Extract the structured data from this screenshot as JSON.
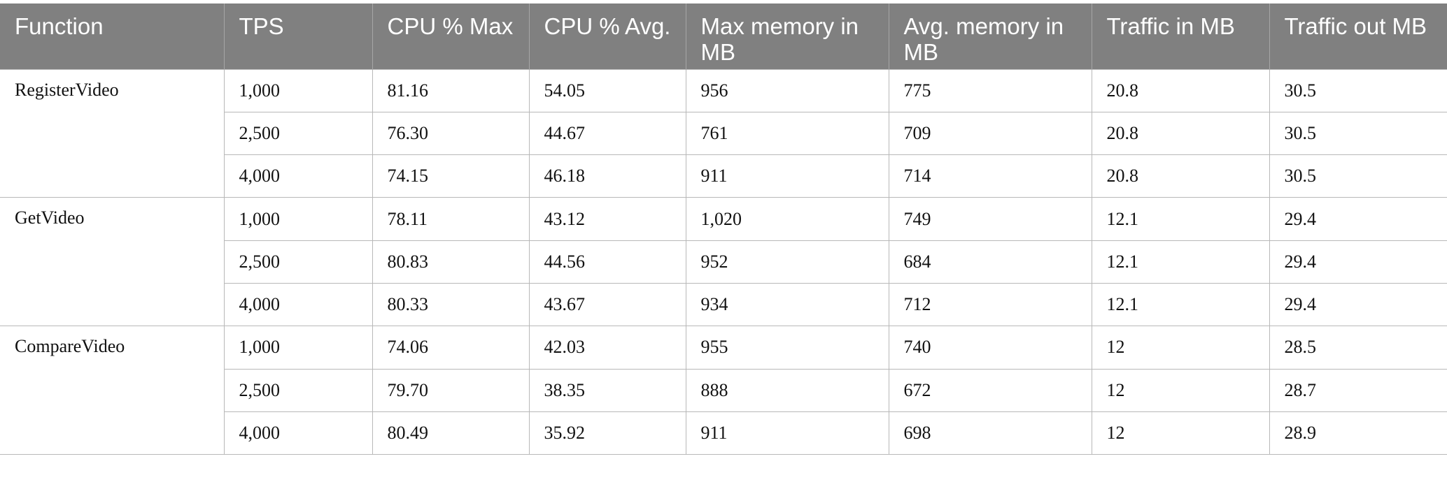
{
  "table": {
    "headers": [
      "Function",
      "TPS",
      "CPU % Max",
      "CPU % Avg.",
      "Max memory in MB",
      "Avg. memory in MB",
      "Traffic in MB",
      "Traffic out MB"
    ],
    "groups": [
      {
        "function": "RegisterVideo",
        "rows": [
          [
            "1,000",
            "81.16",
            "54.05",
            "956",
            "775",
            "20.8",
            "30.5"
          ],
          [
            "2,500",
            "76.30",
            "44.67",
            "761",
            "709",
            "20.8",
            "30.5"
          ],
          [
            "4,000",
            "74.15",
            "46.18",
            "911",
            "714",
            "20.8",
            "30.5"
          ]
        ]
      },
      {
        "function": "GetVideo",
        "rows": [
          [
            "1,000",
            "78.11",
            "43.12",
            "1,020",
            "749",
            "12.1",
            "29.4"
          ],
          [
            "2,500",
            "80.83",
            "44.56",
            "952",
            "684",
            "12.1",
            "29.4"
          ],
          [
            "4,000",
            "80.33",
            "43.67",
            "934",
            "712",
            "12.1",
            "29.4"
          ]
        ]
      },
      {
        "function": "CompareVideo",
        "rows": [
          [
            "1,000",
            "74.06",
            "42.03",
            "955",
            "740",
            "12",
            "28.5"
          ],
          [
            "2,500",
            "79.70",
            "38.35",
            "888",
            "672",
            "12",
            "28.7"
          ],
          [
            "4,000",
            "80.49",
            "35.92",
            "911",
            "698",
            "12",
            "28.9"
          ]
        ]
      }
    ]
  }
}
